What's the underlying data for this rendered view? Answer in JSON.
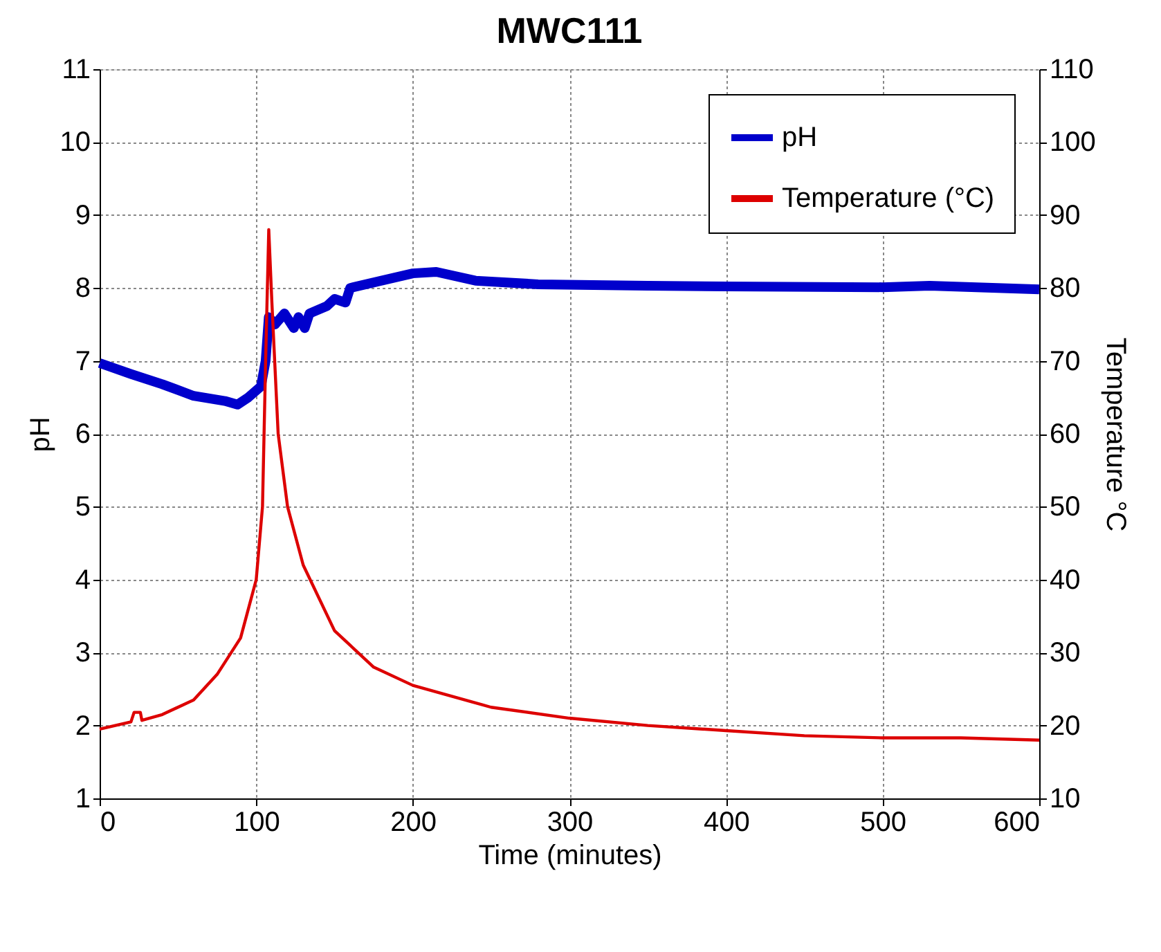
{
  "chart_data": {
    "type": "line",
    "title": "MWC111",
    "xlabel": "Time (minutes)",
    "ylabel": "pH",
    "y2label": "Temperature °C",
    "xlim": [
      0,
      600
    ],
    "xticks": [
      0,
      100,
      200,
      300,
      400,
      500,
      600
    ],
    "ylim": [
      1,
      11
    ],
    "yticks": [
      1,
      2,
      3,
      4,
      5,
      6,
      7,
      8,
      9,
      10,
      11
    ],
    "y2lim": [
      10,
      110
    ],
    "y2ticks": [
      10,
      20,
      30,
      40,
      50,
      60,
      70,
      80,
      90,
      100,
      110
    ],
    "grid": true,
    "legend": "top right",
    "marker": "none",
    "line_style": "solid",
    "series": [
      {
        "name": "pH",
        "color": "#0000cc",
        "x": [
          0,
          20,
          40,
          60,
          80,
          88,
          95,
          103,
          106,
          108,
          112,
          118,
          124,
          127,
          131,
          134,
          145,
          150,
          157,
          160,
          180,
          200,
          215,
          240,
          280,
          350,
          400,
          500,
          530,
          600
        ],
        "values": [
          6.97,
          6.82,
          6.68,
          6.52,
          6.45,
          6.4,
          6.5,
          6.65,
          7.0,
          7.6,
          7.5,
          7.65,
          7.45,
          7.6,
          7.45,
          7.65,
          7.75,
          7.85,
          7.8,
          8.0,
          8.1,
          8.2,
          8.22,
          8.1,
          8.05,
          8.03,
          8.02,
          8.01,
          8.03,
          7.98
        ]
      },
      {
        "name": "Temperature (°C)",
        "color": "#dd0000",
        "axis": "y2",
        "x": [
          0,
          20,
          22,
          26,
          27,
          40,
          60,
          75,
          90,
          100,
          104,
          106,
          108,
          110,
          114,
          120,
          130,
          150,
          175,
          200,
          250,
          300,
          350,
          400,
          450,
          500,
          550,
          600
        ],
        "values": [
          19.5,
          20.5,
          21.8,
          21.8,
          20.7,
          21.5,
          23.5,
          27,
          32,
          40,
          50,
          70,
          88,
          78,
          60,
          50,
          42,
          33,
          28,
          25.5,
          22.5,
          21,
          20,
          19.3,
          18.6,
          18.3,
          18.3,
          18.0
        ]
      }
    ]
  }
}
